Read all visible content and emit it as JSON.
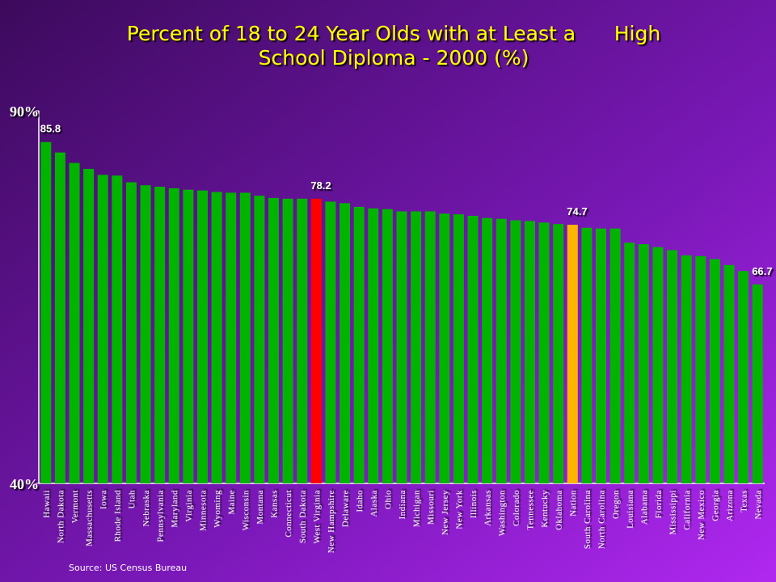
{
  "chart_data": {
    "type": "bar",
    "title": [
      "Percent of 18 to 24 Year Olds with at Least a      High",
      "School Diploma - 2000 (%)"
    ],
    "source": "Source: US Census Bureau",
    "categories": [
      "Hawaii",
      "North Dakota",
      "Vermont",
      "Massachusetts",
      "Iowa",
      "Rhode Island",
      "Utah",
      "Nebraska",
      "Pennsylvania",
      "Maryland",
      "Virginia",
      "Minnesota",
      "Wyoming",
      "Maine",
      "Wisconsin",
      "Montana",
      "Kansas",
      "Connecticut",
      "South Dakota",
      "West Virginia",
      "New Hampshire",
      "Delaware",
      "Idaho",
      "Alaska",
      "Ohio",
      "Indiana",
      "Michigan",
      "Missouri",
      "New Jersey",
      "New York",
      "Illinois",
      "Arkansas",
      "Washington",
      "Colorado",
      "Tennessee",
      "Kentucky",
      "Oklahoma",
      "Nation",
      "South Carolina",
      "North Carolina",
      "Oregon",
      "Louisiana",
      "Alabama",
      "Florida",
      "Mississippi",
      "California",
      "New Mexico",
      "Georgia",
      "Arizona",
      "Texas",
      "Nevada"
    ],
    "values": [
      85.8,
      84.4,
      83.0,
      82.2,
      81.4,
      81.3,
      80.4,
      80.0,
      79.8,
      79.6,
      79.4,
      79.3,
      79.1,
      79.0,
      79.0,
      78.6,
      78.3,
      78.2,
      78.2,
      78.2,
      77.8,
      77.6,
      77.1,
      76.9,
      76.8,
      76.5,
      76.5,
      76.5,
      76.2,
      76.1,
      75.9,
      75.6,
      75.5,
      75.3,
      75.2,
      75.0,
      74.8,
      74.7,
      74.3,
      74.2,
      74.2,
      72.3,
      72.1,
      71.7,
      71.3,
      70.6,
      70.5,
      70.1,
      69.3,
      68.5,
      66.7
    ],
    "value_labels": [
      "85.8",
      null,
      null,
      null,
      null,
      null,
      null,
      null,
      null,
      null,
      null,
      null,
      null,
      null,
      null,
      null,
      null,
      null,
      null,
      "78.2",
      null,
      null,
      null,
      null,
      null,
      null,
      null,
      null,
      null,
      null,
      null,
      null,
      null,
      null,
      null,
      null,
      null,
      "74.7",
      null,
      null,
      null,
      null,
      null,
      null,
      null,
      null,
      null,
      null,
      null,
      null,
      "66.7"
    ],
    "colors": [
      "#00b400",
      "#00b400",
      "#00b400",
      "#00b400",
      "#00b400",
      "#00b400",
      "#00b400",
      "#00b400",
      "#00b400",
      "#00b400",
      "#00b400",
      "#00b400",
      "#00b400",
      "#00b400",
      "#00b400",
      "#00b400",
      "#00b400",
      "#00b400",
      "#00b400",
      "#ff0000",
      "#00b400",
      "#00b400",
      "#00b400",
      "#00b400",
      "#00b400",
      "#00b400",
      "#00b400",
      "#00b400",
      "#00b400",
      "#00b400",
      "#00b400",
      "#00b400",
      "#00b400",
      "#00b400",
      "#00b400",
      "#00b400",
      "#00b400",
      "#ffb400",
      "#00b400",
      "#00b400",
      "#00b400",
      "#00b400",
      "#00b400",
      "#00b400",
      "#00b400",
      "#00b400",
      "#00b400",
      "#00b400",
      "#00b400",
      "#00b400",
      "#00b400"
    ],
    "ylim": [
      40,
      90
    ],
    "yticks": [
      {
        "value": 40,
        "label": "40%"
      },
      {
        "value": 90,
        "label": "90%"
      }
    ]
  }
}
